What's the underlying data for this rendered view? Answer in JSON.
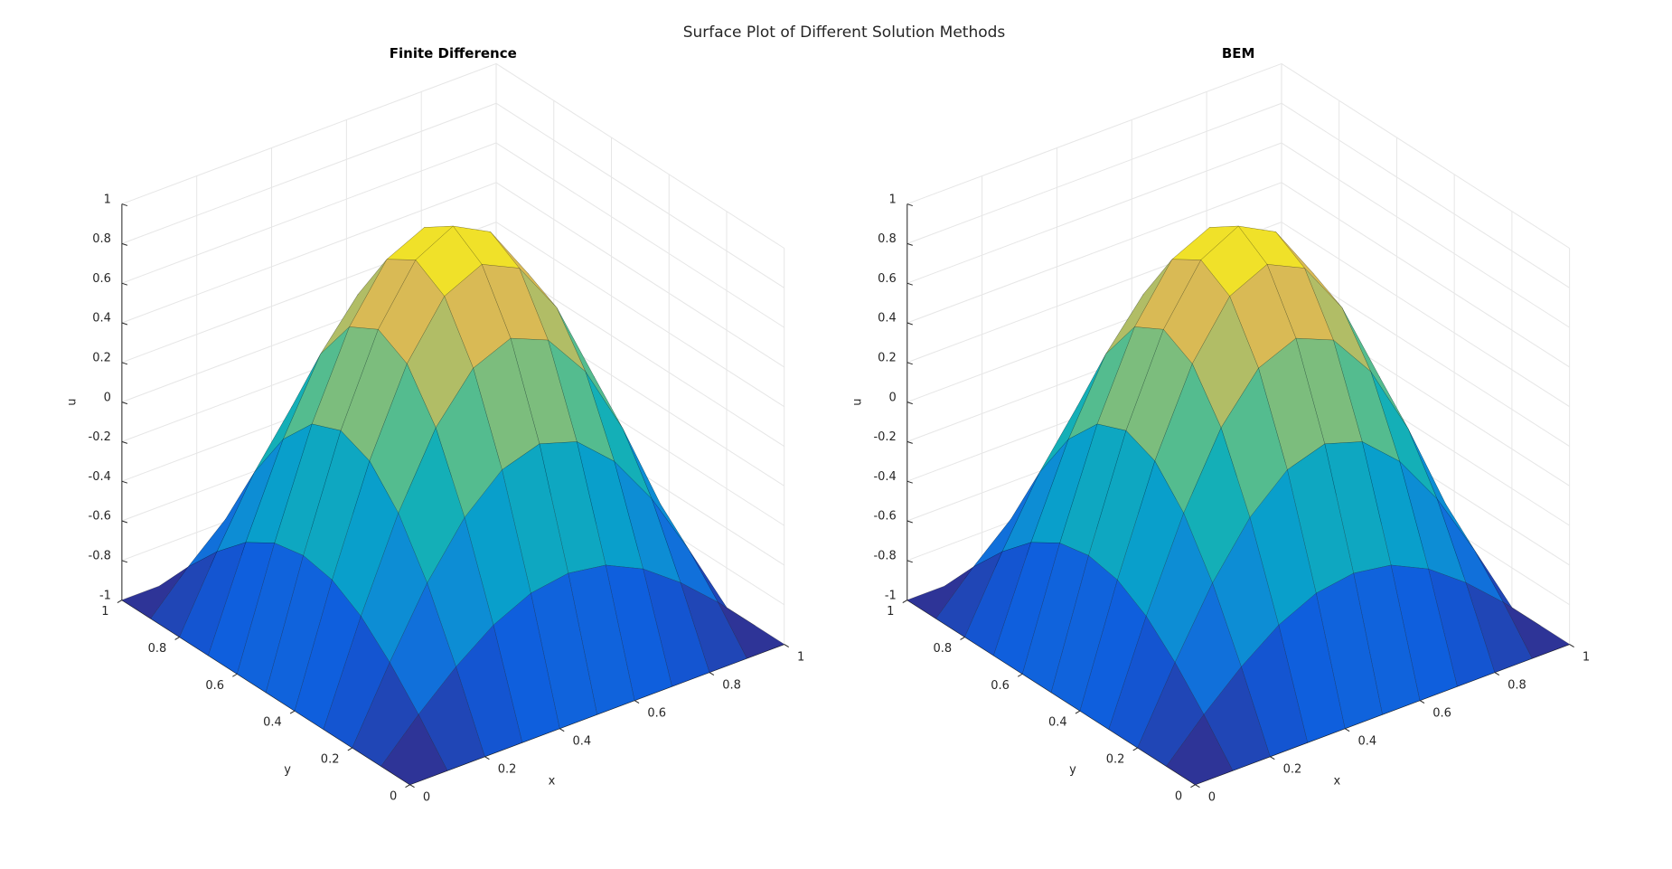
{
  "figure_title": "Surface Plot of Different Solution Methods",
  "chart_data": [
    {
      "type": "surface",
      "title": "Finite Difference",
      "xlabel": "x",
      "ylabel": "y",
      "zlabel": "u",
      "x": [
        0,
        0.1,
        0.2,
        0.3,
        0.4,
        0.5,
        0.6,
        0.7,
        0.8,
        0.9,
        1
      ],
      "y": [
        0,
        0.1,
        0.2,
        0.3,
        0.4,
        0.5,
        0.6,
        0.7,
        0.8,
        0.9,
        1
      ],
      "z": [
        [
          -1,
          -1,
          -1,
          -1,
          -1,
          -1,
          -1,
          -1,
          -1,
          -1,
          -1
        ],
        [
          -1,
          -0.81,
          -0.64,
          -0.5,
          -0.41,
          -0.38,
          -0.41,
          -0.5,
          -0.64,
          -0.81,
          -1
        ],
        [
          -1,
          -0.64,
          -0.31,
          -0.05,
          0.12,
          0.18,
          0.12,
          -0.05,
          -0.31,
          -0.64,
          -1
        ],
        [
          -1,
          -0.5,
          -0.05,
          0.31,
          0.54,
          0.62,
          0.54,
          0.31,
          -0.05,
          -0.5,
          -1
        ],
        [
          -1,
          -0.41,
          0.12,
          0.54,
          0.81,
          0.9,
          0.81,
          0.54,
          0.12,
          -0.41,
          -1
        ],
        [
          -1,
          -0.38,
          0.18,
          0.62,
          0.9,
          1,
          0.9,
          0.62,
          0.18,
          -0.38,
          -1
        ],
        [
          -1,
          -0.41,
          0.12,
          0.54,
          0.81,
          0.9,
          0.81,
          0.54,
          0.12,
          -0.41,
          -1
        ],
        [
          -1,
          -0.5,
          -0.05,
          0.31,
          0.54,
          0.62,
          0.54,
          0.31,
          -0.05,
          -0.5,
          -1
        ],
        [
          -1,
          -0.64,
          -0.31,
          -0.05,
          0.12,
          0.18,
          0.12,
          -0.05,
          -0.31,
          -0.64,
          -1
        ],
        [
          -1,
          -0.81,
          -0.64,
          -0.5,
          -0.41,
          -0.38,
          -0.41,
          -0.5,
          -0.64,
          -0.81,
          -1
        ],
        [
          -1,
          -1,
          -1,
          -1,
          -1,
          -1,
          -1,
          -1,
          -1,
          -1,
          -1
        ]
      ],
      "xlim": [
        0,
        1
      ],
      "ylim": [
        0,
        1
      ],
      "zlim": [
        -1,
        1
      ],
      "xticks": [
        0,
        0.2,
        0.4,
        0.6,
        0.8,
        1
      ],
      "yticks": [
        0,
        0.2,
        0.4,
        0.6,
        0.8,
        1
      ],
      "zticks": [
        -1,
        -0.8,
        -0.6,
        -0.4,
        -0.2,
        0,
        0.2,
        0.4,
        0.6,
        0.8,
        1
      ],
      "colormap": "parula",
      "grid": true
    },
    {
      "type": "surface",
      "title": "BEM",
      "xlabel": "x",
      "ylabel": "y",
      "zlabel": "u",
      "x": [
        0,
        0.1,
        0.2,
        0.3,
        0.4,
        0.5,
        0.6,
        0.7,
        0.8,
        0.9,
        1
      ],
      "y": [
        0,
        0.1,
        0.2,
        0.3,
        0.4,
        0.5,
        0.6,
        0.7,
        0.8,
        0.9,
        1
      ],
      "z": [
        [
          -1,
          -1,
          -1,
          -1,
          -1,
          -1,
          -1,
          -1,
          -1,
          -1,
          -1
        ],
        [
          -1,
          -0.81,
          -0.64,
          -0.5,
          -0.41,
          -0.38,
          -0.41,
          -0.5,
          -0.64,
          -0.81,
          -1
        ],
        [
          -1,
          -0.64,
          -0.31,
          -0.05,
          0.12,
          0.18,
          0.12,
          -0.05,
          -0.31,
          -0.64,
          -1
        ],
        [
          -1,
          -0.5,
          -0.05,
          0.31,
          0.54,
          0.62,
          0.54,
          0.31,
          -0.05,
          -0.5,
          -1
        ],
        [
          -1,
          -0.41,
          0.12,
          0.54,
          0.81,
          0.9,
          0.81,
          0.54,
          0.12,
          -0.41,
          -1
        ],
        [
          -1,
          -0.38,
          0.18,
          0.62,
          0.9,
          1,
          0.9,
          0.62,
          0.18,
          -0.38,
          -1
        ],
        [
          -1,
          -0.41,
          0.12,
          0.54,
          0.81,
          0.9,
          0.81,
          0.54,
          0.12,
          -0.41,
          -1
        ],
        [
          -1,
          -0.5,
          -0.05,
          0.31,
          0.54,
          0.62,
          0.54,
          0.31,
          -0.05,
          -0.5,
          -1
        ],
        [
          -1,
          -0.64,
          -0.31,
          -0.05,
          0.12,
          0.18,
          0.12,
          -0.05,
          -0.31,
          -0.64,
          -1
        ],
        [
          -1,
          -0.81,
          -0.64,
          -0.5,
          -0.41,
          -0.38,
          -0.41,
          -0.5,
          -0.64,
          -0.81,
          -1
        ],
        [
          -1,
          -1,
          -1,
          -1,
          -1,
          -1,
          -1,
          -1,
          -1,
          -1,
          -1
        ]
      ],
      "xlim": [
        0,
        1
      ],
      "ylim": [
        0,
        1
      ],
      "zlim": [
        -1,
        1
      ],
      "xticks": [
        0,
        0.2,
        0.4,
        0.6,
        0.8,
        1
      ],
      "yticks": [
        0,
        0.2,
        0.4,
        0.6,
        0.8,
        1
      ],
      "zticks": [
        -1,
        -0.8,
        -0.6,
        -0.4,
        -0.2,
        0,
        0.2,
        0.4,
        0.6,
        0.8,
        1
      ],
      "colormap": "parula",
      "grid": true
    }
  ]
}
